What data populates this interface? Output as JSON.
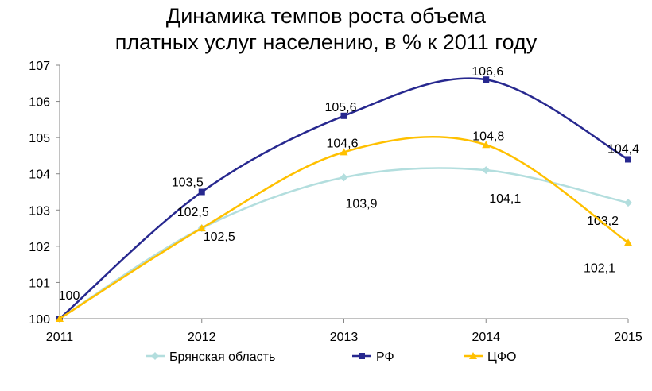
{
  "chart_data": {
    "type": "line",
    "title": [
      "Динамика темпов роста объема",
      "платных услуг населению, в % к 2011 году"
    ],
    "xlabel": "",
    "ylabel": "",
    "categories": [
      "2011",
      "2012",
      "2013",
      "2014",
      "2015"
    ],
    "ylim": [
      100,
      107
    ],
    "yticks": [
      "100",
      "101",
      "102",
      "103",
      "104",
      "105",
      "106",
      "107"
    ],
    "grid": false,
    "legend": "bottom",
    "series": [
      {
        "name": "Брянская область",
        "values": [
          100,
          102.5,
          103.9,
          104.1,
          103.2
        ],
        "labels": [
          "",
          "102,5",
          "103,9",
          "104,1",
          "103,2"
        ],
        "color": "#b3dede",
        "marker": "diamond"
      },
      {
        "name": "РФ",
        "values": [
          100,
          103.5,
          105.6,
          106.6,
          104.4
        ],
        "labels": [
          "100",
          "103,5",
          "105,6",
          "106,6",
          "104,4"
        ],
        "color": "#27288f",
        "marker": "square"
      },
      {
        "name": "ЦФО",
        "values": [
          100,
          102.5,
          104.6,
          104.8,
          102.1
        ],
        "labels": [
          "",
          "102,5",
          "104,6",
          "104,8",
          "102,1"
        ],
        "color": "#ffc000",
        "marker": "triangle"
      }
    ]
  }
}
